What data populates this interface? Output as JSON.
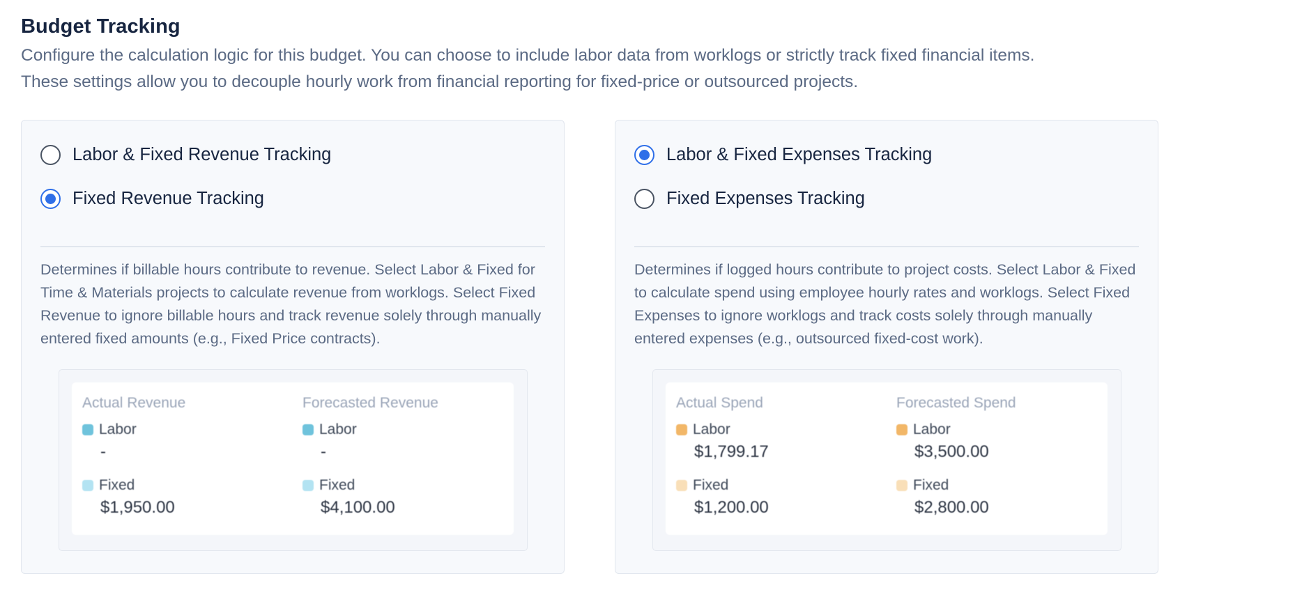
{
  "header": {
    "title": "Budget Tracking",
    "description_line1": "Configure the calculation logic for this budget. You can choose to include labor data from worklogs or strictly track fixed financial items.",
    "description_line2": "These settings allow you to decouple hourly work from financial reporting for fixed-price or outsourced projects."
  },
  "revenue": {
    "options": [
      {
        "label": "Labor & Fixed Revenue Tracking",
        "selected": false
      },
      {
        "label": "Fixed Revenue Tracking",
        "selected": true
      }
    ],
    "help": "Determines if billable hours contribute to revenue. Select Labor & Fixed for Time & Materials projects to calculate revenue from worklogs. Select Fixed Revenue to ignore billable hours and track revenue solely through manually entered fixed amounts (e.g., Fixed Price contracts).",
    "preview": {
      "actual": {
        "heading": "Actual Revenue",
        "labor_label": "Labor",
        "labor_value": "-",
        "fixed_label": "Fixed",
        "fixed_value": "$1,950.00"
      },
      "forecast": {
        "heading": "Forecasted Revenue",
        "labor_label": "Labor",
        "labor_value": "-",
        "fixed_label": "Fixed",
        "fixed_value": "$4,100.00"
      },
      "colors": {
        "labor": "#6fc3dc",
        "fixed": "#b3e3f2"
      }
    }
  },
  "expenses": {
    "options": [
      {
        "label": "Labor & Fixed Expenses Tracking",
        "selected": true
      },
      {
        "label": "Fixed Expenses Tracking",
        "selected": false
      }
    ],
    "help": "Determines if logged hours contribute to project costs. Select Labor & Fixed to calculate spend using employee hourly rates and worklogs. Select Fixed Expenses to ignore worklogs and track costs solely through manually entered expenses (e.g., outsourced fixed-cost work).",
    "preview": {
      "actual": {
        "heading": "Actual Spend",
        "labor_label": "Labor",
        "labor_value": "$1,799.17",
        "fixed_label": "Fixed",
        "fixed_value": "$1,200.00"
      },
      "forecast": {
        "heading": "Forecasted Spend",
        "labor_label": "Labor",
        "labor_value": "$3,500.00",
        "fixed_label": "Fixed",
        "fixed_value": "$2,800.00"
      },
      "colors": {
        "labor": "#f2b768",
        "fixed": "#f9dfb8"
      }
    }
  },
  "colors": {
    "accent": "#2f6fe8"
  }
}
